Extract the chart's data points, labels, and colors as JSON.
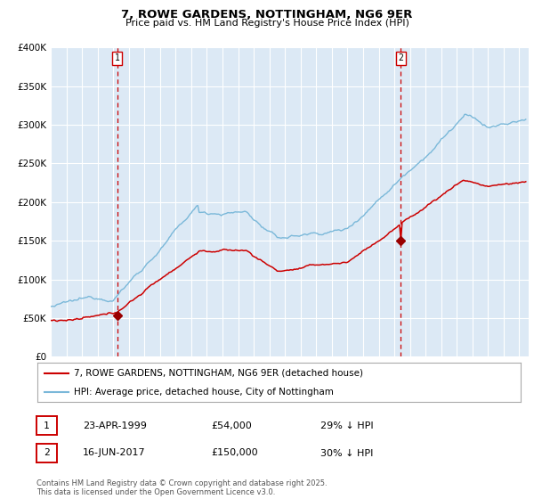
{
  "title": "7, ROWE GARDENS, NOTTINGHAM, NG6 9ER",
  "subtitle": "Price paid vs. HM Land Registry's House Price Index (HPI)",
  "plot_bg_color": "#dce9f5",
  "hpi_color": "#7ab8d9",
  "price_color": "#cc0000",
  "marker_color": "#990000",
  "vline_color": "#cc0000",
  "ylim": [
    0,
    400000
  ],
  "yticks": [
    0,
    50000,
    100000,
    150000,
    200000,
    250000,
    300000,
    350000,
    400000
  ],
  "ytick_labels": [
    "£0",
    "£50K",
    "£100K",
    "£150K",
    "£200K",
    "£250K",
    "£300K",
    "£350K",
    "£400K"
  ],
  "legend_entries": [
    "7, ROWE GARDENS, NOTTINGHAM, NG6 9ER (detached house)",
    "HPI: Average price, detached house, City of Nottingham"
  ],
  "transaction1": {
    "label": "1",
    "date": "23-APR-1999",
    "price_str": "£54,000",
    "pct": "29% ↓ HPI",
    "year": 1999.3
  },
  "transaction2": {
    "label": "2",
    "date": "16-JUN-2017",
    "price_str": "£150,000",
    "pct": "30% ↓ HPI",
    "year": 2017.46
  },
  "t1_price": 54000,
  "t2_price": 150000,
  "footer": "Contains HM Land Registry data © Crown copyright and database right 2025.\nThis data is licensed under the Open Government Licence v3.0.",
  "x_start_year": 1995,
  "x_end_year": 2025
}
